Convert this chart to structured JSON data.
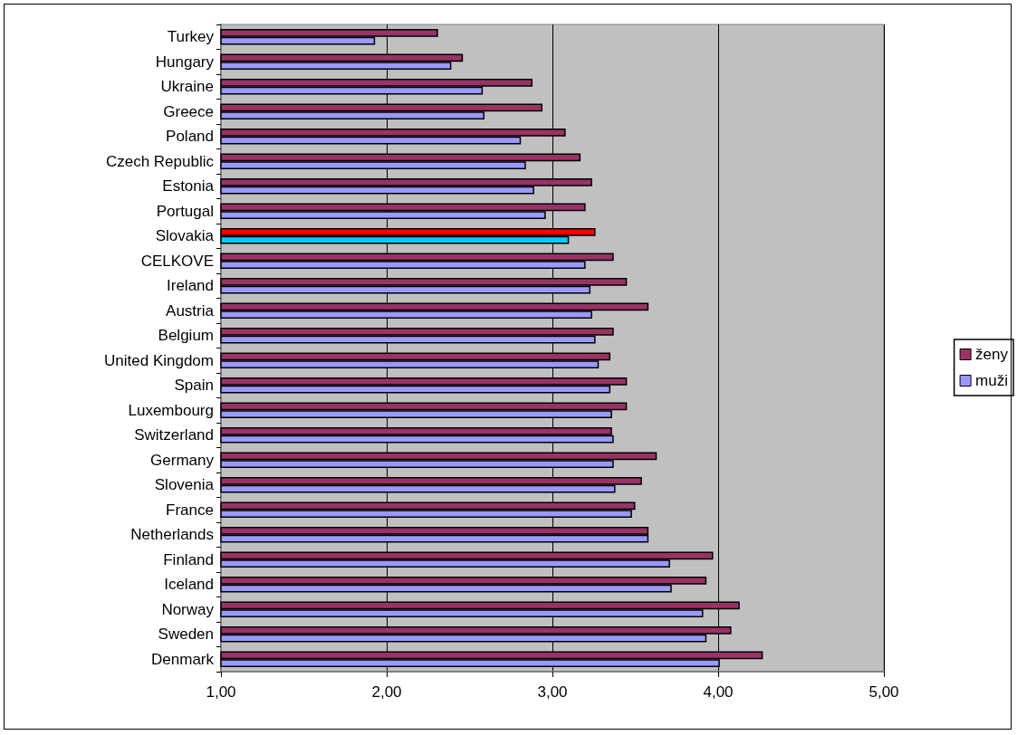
{
  "chart_data": {
    "type": "bar",
    "orientation": "horizontal",
    "categories": [
      "Turkey",
      "Hungary",
      "Ukraine",
      "Greece",
      "Poland",
      "Czech Republic",
      "Estonia",
      "Portugal",
      "Slovakia",
      "CELKOVE",
      "Ireland",
      "Austria",
      "Belgium",
      "United Kingdom",
      "Spain",
      "Luxembourg",
      "Switzerland",
      "Germany",
      "Slovenia",
      "France",
      "Netherlands",
      "Finland",
      "Iceland",
      "Norway",
      "Sweden",
      "Denmark"
    ],
    "series": [
      {
        "name": "ženy",
        "color": "#993366",
        "colors": [
          "#993366",
          "#993366",
          "#993366",
          "#993366",
          "#993366",
          "#993366",
          "#993366",
          "#993366",
          "#ff0000",
          "#993366",
          "#993366",
          "#993366",
          "#993366",
          "#993366",
          "#993366",
          "#993366",
          "#993366",
          "#993366",
          "#993366",
          "#993366",
          "#993366",
          "#993366",
          "#993366",
          "#993366",
          "#993366",
          "#993366"
        ],
        "values": [
          2.31,
          2.46,
          2.88,
          2.94,
          3.08,
          3.17,
          3.24,
          3.2,
          3.26,
          3.37,
          3.45,
          3.58,
          3.37,
          3.35,
          3.45,
          3.45,
          3.36,
          3.63,
          3.54,
          3.5,
          3.58,
          3.97,
          3.93,
          4.13,
          4.08,
          4.27
        ]
      },
      {
        "name": "muži",
        "color": "#9999ff",
        "colors": [
          "#9999ff",
          "#9999ff",
          "#9999ff",
          "#9999ff",
          "#9999ff",
          "#9999ff",
          "#9999ff",
          "#9999ff",
          "#00ccff",
          "#9999ff",
          "#9999ff",
          "#9999ff",
          "#9999ff",
          "#9999ff",
          "#9999ff",
          "#9999ff",
          "#9999ff",
          "#9999ff",
          "#9999ff",
          "#9999ff",
          "#9999ff",
          "#9999ff",
          "#9999ff",
          "#9999ff",
          "#9999ff",
          "#9999ff"
        ],
        "values": [
          1.93,
          2.39,
          2.58,
          2.59,
          2.81,
          2.84,
          2.89,
          2.96,
          3.1,
          3.2,
          3.23,
          3.24,
          3.26,
          3.28,
          3.35,
          3.36,
          3.37,
          3.37,
          3.38,
          3.48,
          3.58,
          3.71,
          3.72,
          3.91,
          3.93,
          4.01
        ]
      }
    ],
    "xlim": [
      1,
      5
    ],
    "xticks": [
      {
        "value": 1,
        "label": "1,00"
      },
      {
        "value": 2,
        "label": "2,00"
      },
      {
        "value": 3,
        "label": "3,00"
      },
      {
        "value": 4,
        "label": "4,00"
      },
      {
        "value": 5,
        "label": "5,00"
      }
    ],
    "grid": "x",
    "legend": "right"
  }
}
